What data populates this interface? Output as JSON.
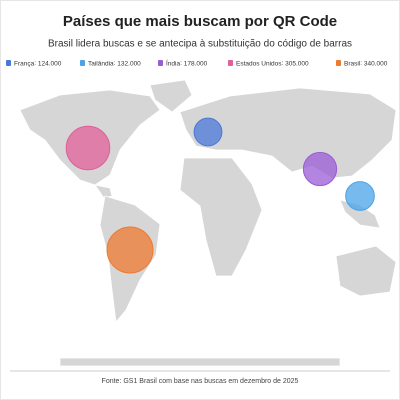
{
  "chart_data": {
    "type": "bubble-map",
    "title": "Países que mais buscam por QR Code",
    "subtitle": "Brasil lidera buscas e se antecipa à substituição do código de barras",
    "series": [
      {
        "name": "França",
        "color": "#4a78d8",
        "values": [
          124000
        ],
        "value_labels": [
          "124.000"
        ]
      },
      {
        "name": "Tailândia",
        "color": "#4aa3e8",
        "values": [
          132000
        ],
        "value_labels": [
          "132.000"
        ]
      },
      {
        "name": "Índia",
        "color": "#9a5bd6",
        "values": [
          178000
        ],
        "value_labels": [
          "178.000"
        ]
      },
      {
        "name": "Estados Unidos",
        "color": "#e0609a",
        "values": [
          305000
        ],
        "value_labels": [
          "305.000"
        ]
      },
      {
        "name": "Brasil",
        "color": "#ee7a30",
        "values": [
          340000
        ],
        "value_labels": [
          "340.000"
        ]
      }
    ],
    "source": "Fonte: GS1 Brasil com base nas buscas em dezembro de 2025"
  }
}
